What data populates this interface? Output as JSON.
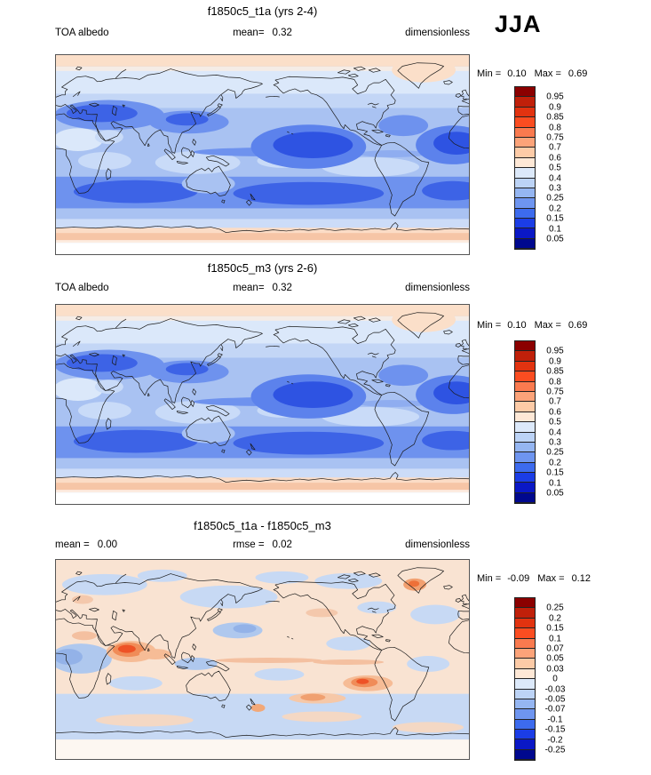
{
  "season_label": "JJA",
  "panels": [
    {
      "title": "f1850c5_t1a (yrs 2-4)",
      "meta": {
        "left": "TOA albedo",
        "center_label": "mean=",
        "center_value": "0.32",
        "right": "dimensionless"
      },
      "stats": {
        "min_label": "Min =",
        "min_value": "0.10",
        "max_label": "Max =",
        "max_value": "0.69"
      },
      "colorbar_ticks": [
        "0.95",
        "0.9",
        "0.85",
        "0.8",
        "0.75",
        "0.7",
        "0.6",
        "0.5",
        "0.4",
        "0.3",
        "0.25",
        "0.2",
        "0.15",
        "0.1",
        "0.05"
      ]
    },
    {
      "title": "f1850c5_m3 (yrs 2-6)",
      "meta": {
        "left": "TOA albedo",
        "center_label": "mean=",
        "center_value": "0.32",
        "right": "dimensionless"
      },
      "stats": {
        "min_label": "Min =",
        "min_value": "0.10",
        "max_label": "Max =",
        "max_value": "0.69"
      },
      "colorbar_ticks": [
        "0.95",
        "0.9",
        "0.85",
        "0.8",
        "0.75",
        "0.7",
        "0.6",
        "0.5",
        "0.4",
        "0.3",
        "0.25",
        "0.2",
        "0.15",
        "0.1",
        "0.05"
      ]
    },
    {
      "title": "f1850c5_t1a - f1850c5_m3",
      "meta": {
        "left": "mean =",
        "left_value": "0.00",
        "center_label": "rmse =",
        "center_value": "0.02",
        "right": "dimensionless"
      },
      "stats": {
        "min_label": "Min =",
        "min_value": "-0.09",
        "max_label": "Max =",
        "max_value": "0.12"
      },
      "colorbar_ticks": [
        "0.25",
        "0.2",
        "0.15",
        "0.1",
        "0.07",
        "0.05",
        "0.03",
        "0",
        "-0.03",
        "-0.05",
        "-0.07",
        "-0.1",
        "-0.15",
        "-0.2",
        "-0.25"
      ]
    }
  ],
  "colorbar": {
    "colors_top_to_bottom": [
      "#8b0000",
      "#c0200a",
      "#e23310",
      "#fb4d21",
      "#fa7a4f",
      "#fca379",
      "#fdcba7",
      "#fee8d6",
      "#dce9fa",
      "#bcd3f6",
      "#95b6f2",
      "#6e95f0",
      "#3d6bee",
      "#1b3de6",
      "#0a18c6",
      "#00088e"
    ]
  },
  "chart_data": [
    {
      "type": "heatmap",
      "subtype": "global filled-contour map, Pacific-centered (0-360E)",
      "title": "f1850c5_t1a (yrs 2-4)",
      "variable": "TOA albedo",
      "units": "dimensionless",
      "season": "JJA",
      "stats": {
        "mean": 0.32,
        "min": 0.1,
        "max": 0.69
      },
      "contour_levels": [
        0.05,
        0.1,
        0.15,
        0.2,
        0.25,
        0.3,
        0.4,
        0.5,
        0.6,
        0.7,
        0.75,
        0.8,
        0.85,
        0.9,
        0.95
      ],
      "palette_high_to_low": [
        "#8b0000",
        "#c0200a",
        "#e23310",
        "#fb4d21",
        "#fa7a4f",
        "#fca379",
        "#fdcba7",
        "#fee8d6",
        "#dce9fa",
        "#bcd3f6",
        "#95b6f2",
        "#6e95f0",
        "#3d6bee",
        "#1b3de6",
        "#0a18c6",
        "#00088e"
      ],
      "legend_position": "right",
      "pattern": "low albedo (0.05-0.2, deep blue) over subtropical oceans and Mediterranean; 0.3-0.5 (light blue) mid-latitudes and tropics; >0.5 (peach) over Arctic, Greenland and Antarctic latitudes"
    },
    {
      "type": "heatmap",
      "subtype": "global filled-contour map, Pacific-centered (0-360E)",
      "title": "f1850c5_m3 (yrs 2-6)",
      "variable": "TOA albedo",
      "units": "dimensionless",
      "season": "JJA",
      "stats": {
        "mean": 0.32,
        "min": 0.1,
        "max": 0.69
      },
      "contour_levels": [
        0.05,
        0.1,
        0.15,
        0.2,
        0.25,
        0.3,
        0.4,
        0.5,
        0.6,
        0.7,
        0.75,
        0.8,
        0.85,
        0.9,
        0.95
      ],
      "palette_high_to_low": [
        "#8b0000",
        "#c0200a",
        "#e23310",
        "#fb4d21",
        "#fa7a4f",
        "#fca379",
        "#fdcba7",
        "#fee8d6",
        "#dce9fa",
        "#bcd3f6",
        "#95b6f2",
        "#6e95f0",
        "#3d6bee",
        "#1b3de6",
        "#0a18c6",
        "#00088e"
      ],
      "legend_position": "right",
      "pattern": "nearly identical field to f1850c5_t1a panel"
    },
    {
      "type": "heatmap",
      "subtype": "global filled-contour difference map, Pacific-centered (0-360E)",
      "title": "f1850c5_t1a - f1850c5_m3",
      "variable": "TOA albedo difference",
      "units": "dimensionless",
      "season": "JJA",
      "stats": {
        "mean": 0.0,
        "rmse": 0.02,
        "min": -0.09,
        "max": 0.12
      },
      "contour_levels": [
        -0.25,
        -0.2,
        -0.15,
        -0.1,
        -0.07,
        -0.05,
        -0.03,
        0,
        0.03,
        0.05,
        0.07,
        0.1,
        0.15,
        0.2,
        0.25
      ],
      "palette_high_to_low": [
        "#8b0000",
        "#c0200a",
        "#e23310",
        "#fb4d21",
        "#fa7a4f",
        "#fca379",
        "#fdcba7",
        "#fee8d6",
        "#dce9fa",
        "#bcd3f6",
        "#95b6f2",
        "#6e95f0",
        "#3d6bee",
        "#1b3de6",
        "#0a18c6",
        "#00088e"
      ],
      "legend_position": "right",
      "pattern": "mostly near zero (pale peach/blue); positive anomaly ~+0.1 over Arabian Sea and southeast Pacific; scattered weak ±0.05 patches; light negative band over Southern Ocean"
    }
  ]
}
